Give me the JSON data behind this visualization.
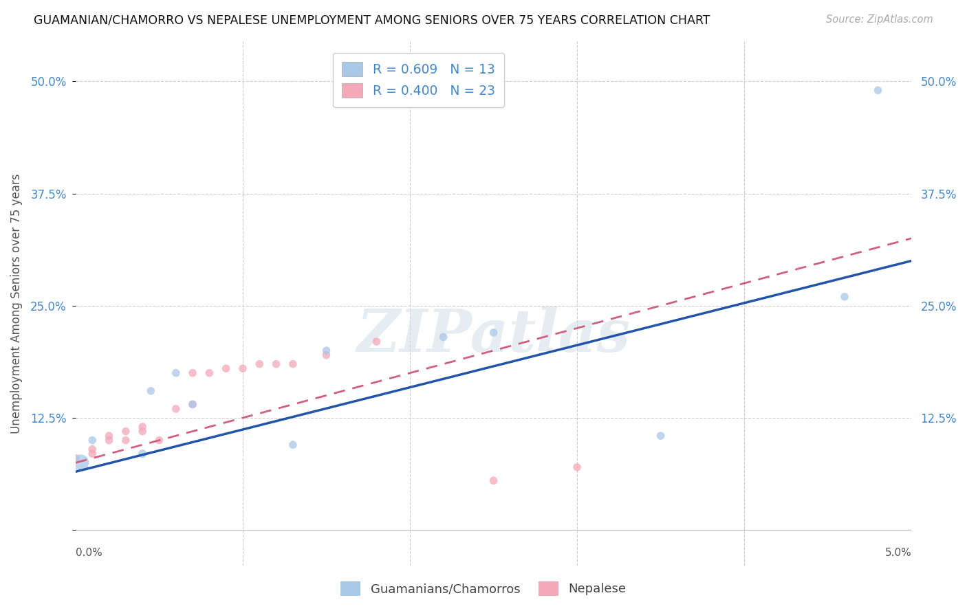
{
  "title": "GUAMANIAN/CHAMORRO VS NEPALESE UNEMPLOYMENT AMONG SENIORS OVER 75 YEARS CORRELATION CHART",
  "source": "Source: ZipAtlas.com",
  "ylabel": "Unemployment Among Seniors over 75 years",
  "yticks": [
    0.0,
    0.125,
    0.25,
    0.375,
    0.5
  ],
  "ytick_labels": [
    "",
    "12.5%",
    "25.0%",
    "37.5%",
    "50.0%"
  ],
  "xlim": [
    0.0,
    0.05
  ],
  "ylim": [
    -0.04,
    0.545
  ],
  "legend1_label": "R = 0.609   N = 13",
  "legend2_label": "R = 0.400   N = 23",
  "legend_bottom1": "Guamanians/Chamorros",
  "legend_bottom2": "Nepalese",
  "blue_color": "#a8c8e8",
  "pink_color": "#f4a8b8",
  "blue_line_color": "#2255aa",
  "pink_line_color": "#d06080",
  "legend_text_color": "#4488cc",
  "axis_label_color": "#4488cc",
  "watermark_color": "#d0dfe8",
  "guamanian_x": [
    0.0003,
    0.001,
    0.004,
    0.0045,
    0.006,
    0.007,
    0.013,
    0.015,
    0.022,
    0.025,
    0.035,
    0.046,
    0.048
  ],
  "guamanian_y": [
    0.075,
    0.1,
    0.085,
    0.155,
    0.175,
    0.14,
    0.095,
    0.2,
    0.215,
    0.22,
    0.105,
    0.26,
    0.49
  ],
  "guamanian_sizes": [
    300,
    70,
    80,
    70,
    70,
    70,
    70,
    70,
    70,
    70,
    70,
    70,
    70
  ],
  "nepalese_x": [
    0.0,
    0.001,
    0.001,
    0.002,
    0.002,
    0.003,
    0.003,
    0.004,
    0.004,
    0.005,
    0.006,
    0.007,
    0.007,
    0.008,
    0.009,
    0.01,
    0.011,
    0.012,
    0.013,
    0.015,
    0.018,
    0.025,
    0.03
  ],
  "nepalese_y": [
    0.08,
    0.085,
    0.09,
    0.1,
    0.105,
    0.1,
    0.11,
    0.11,
    0.115,
    0.1,
    0.135,
    0.14,
    0.175,
    0.175,
    0.18,
    0.18,
    0.185,
    0.185,
    0.185,
    0.195,
    0.21,
    0.055,
    0.07
  ],
  "nepalese_sizes": [
    70,
    70,
    70,
    70,
    70,
    70,
    70,
    70,
    70,
    70,
    70,
    70,
    70,
    70,
    70,
    70,
    70,
    70,
    70,
    70,
    70,
    70,
    70
  ],
  "blue_line_x0": 0.0,
  "blue_line_y0": 0.065,
  "blue_line_x1": 0.05,
  "blue_line_y1": 0.3,
  "pink_line_x0": 0.0,
  "pink_line_y0": 0.075,
  "pink_line_x1": 0.05,
  "pink_line_y1": 0.325
}
